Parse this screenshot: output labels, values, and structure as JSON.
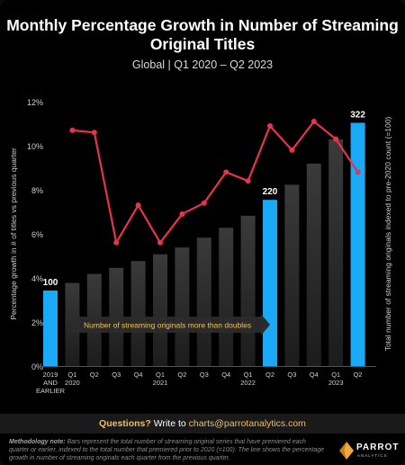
{
  "chart_data": {
    "type": "bar+line",
    "title": "Monthly Percentage Growth in Number of Streaming Original Titles",
    "subtitle": "Global | Q1 2020 – Q2 2023",
    "categories": [
      [
        "2019",
        "AND",
        "EARLIER"
      ],
      [
        "Q1",
        "2020"
      ],
      [
        "Q2"
      ],
      [
        "Q3"
      ],
      [
        "Q4"
      ],
      [
        "Q1",
        "2021"
      ],
      [
        "Q2"
      ],
      [
        "Q3"
      ],
      [
        "Q4"
      ],
      [
        "Q1",
        "2022"
      ],
      [
        "Q2"
      ],
      [
        "Q3"
      ],
      [
        "Q4"
      ],
      [
        "Q1",
        "2023"
      ],
      [
        "Q2"
      ]
    ],
    "bars": {
      "axis": "right",
      "ylabel": "Total number of streaming originals indexed to pre-2020 count (=100)",
      "values": [
        100,
        110,
        122,
        130,
        139,
        148,
        157,
        170,
        183,
        199,
        220,
        240,
        268,
        300,
        322
      ],
      "highlighted": [
        0,
        10,
        14
      ],
      "data_labels": {
        "0": "100",
        "10": "220",
        "14": "322"
      }
    },
    "line": {
      "axis": "left",
      "ylabel": "Percentage growth in # of titles vs previous quarter",
      "x_start_index": 1,
      "values": [
        10.7,
        10.6,
        5.6,
        7.3,
        5.6,
        6.9,
        7.4,
        8.8,
        8.4,
        10.9,
        9.8,
        11.1,
        10.3,
        8.8
      ]
    },
    "left_axis": {
      "ylim": [
        0,
        12
      ],
      "ticks": [
        "0%",
        "2%",
        "4%",
        "6%",
        "8%",
        "10%",
        "12%"
      ]
    },
    "right_axis": {
      "ylim": [
        0,
        350
      ]
    },
    "annotation": "Number of streaming originals more than doubles",
    "grid": false,
    "colors": {
      "highlight_bar": "#19a9f5",
      "line": "#e8334a",
      "bar_dark_start": "#1c1c1c",
      "bar_dark_end": "#3a3a3a"
    }
  },
  "cta": {
    "question": "Questions?",
    "write_to": "Write to",
    "email": "charts@parrotanalytics.com"
  },
  "methodology": {
    "label": "Methodology note:",
    "text": "Bars represent the total number of streaming original series that have premiered each quarter or earlier, indexed to the total number that premiered prior to 2020 (=100). The line shows the percentage growth in number of streaming originals each quarter from the previous quarter."
  },
  "logo": {
    "name": "PARROT",
    "sub": "ANALYTICS",
    "icon": "parrot-logo-icon"
  }
}
